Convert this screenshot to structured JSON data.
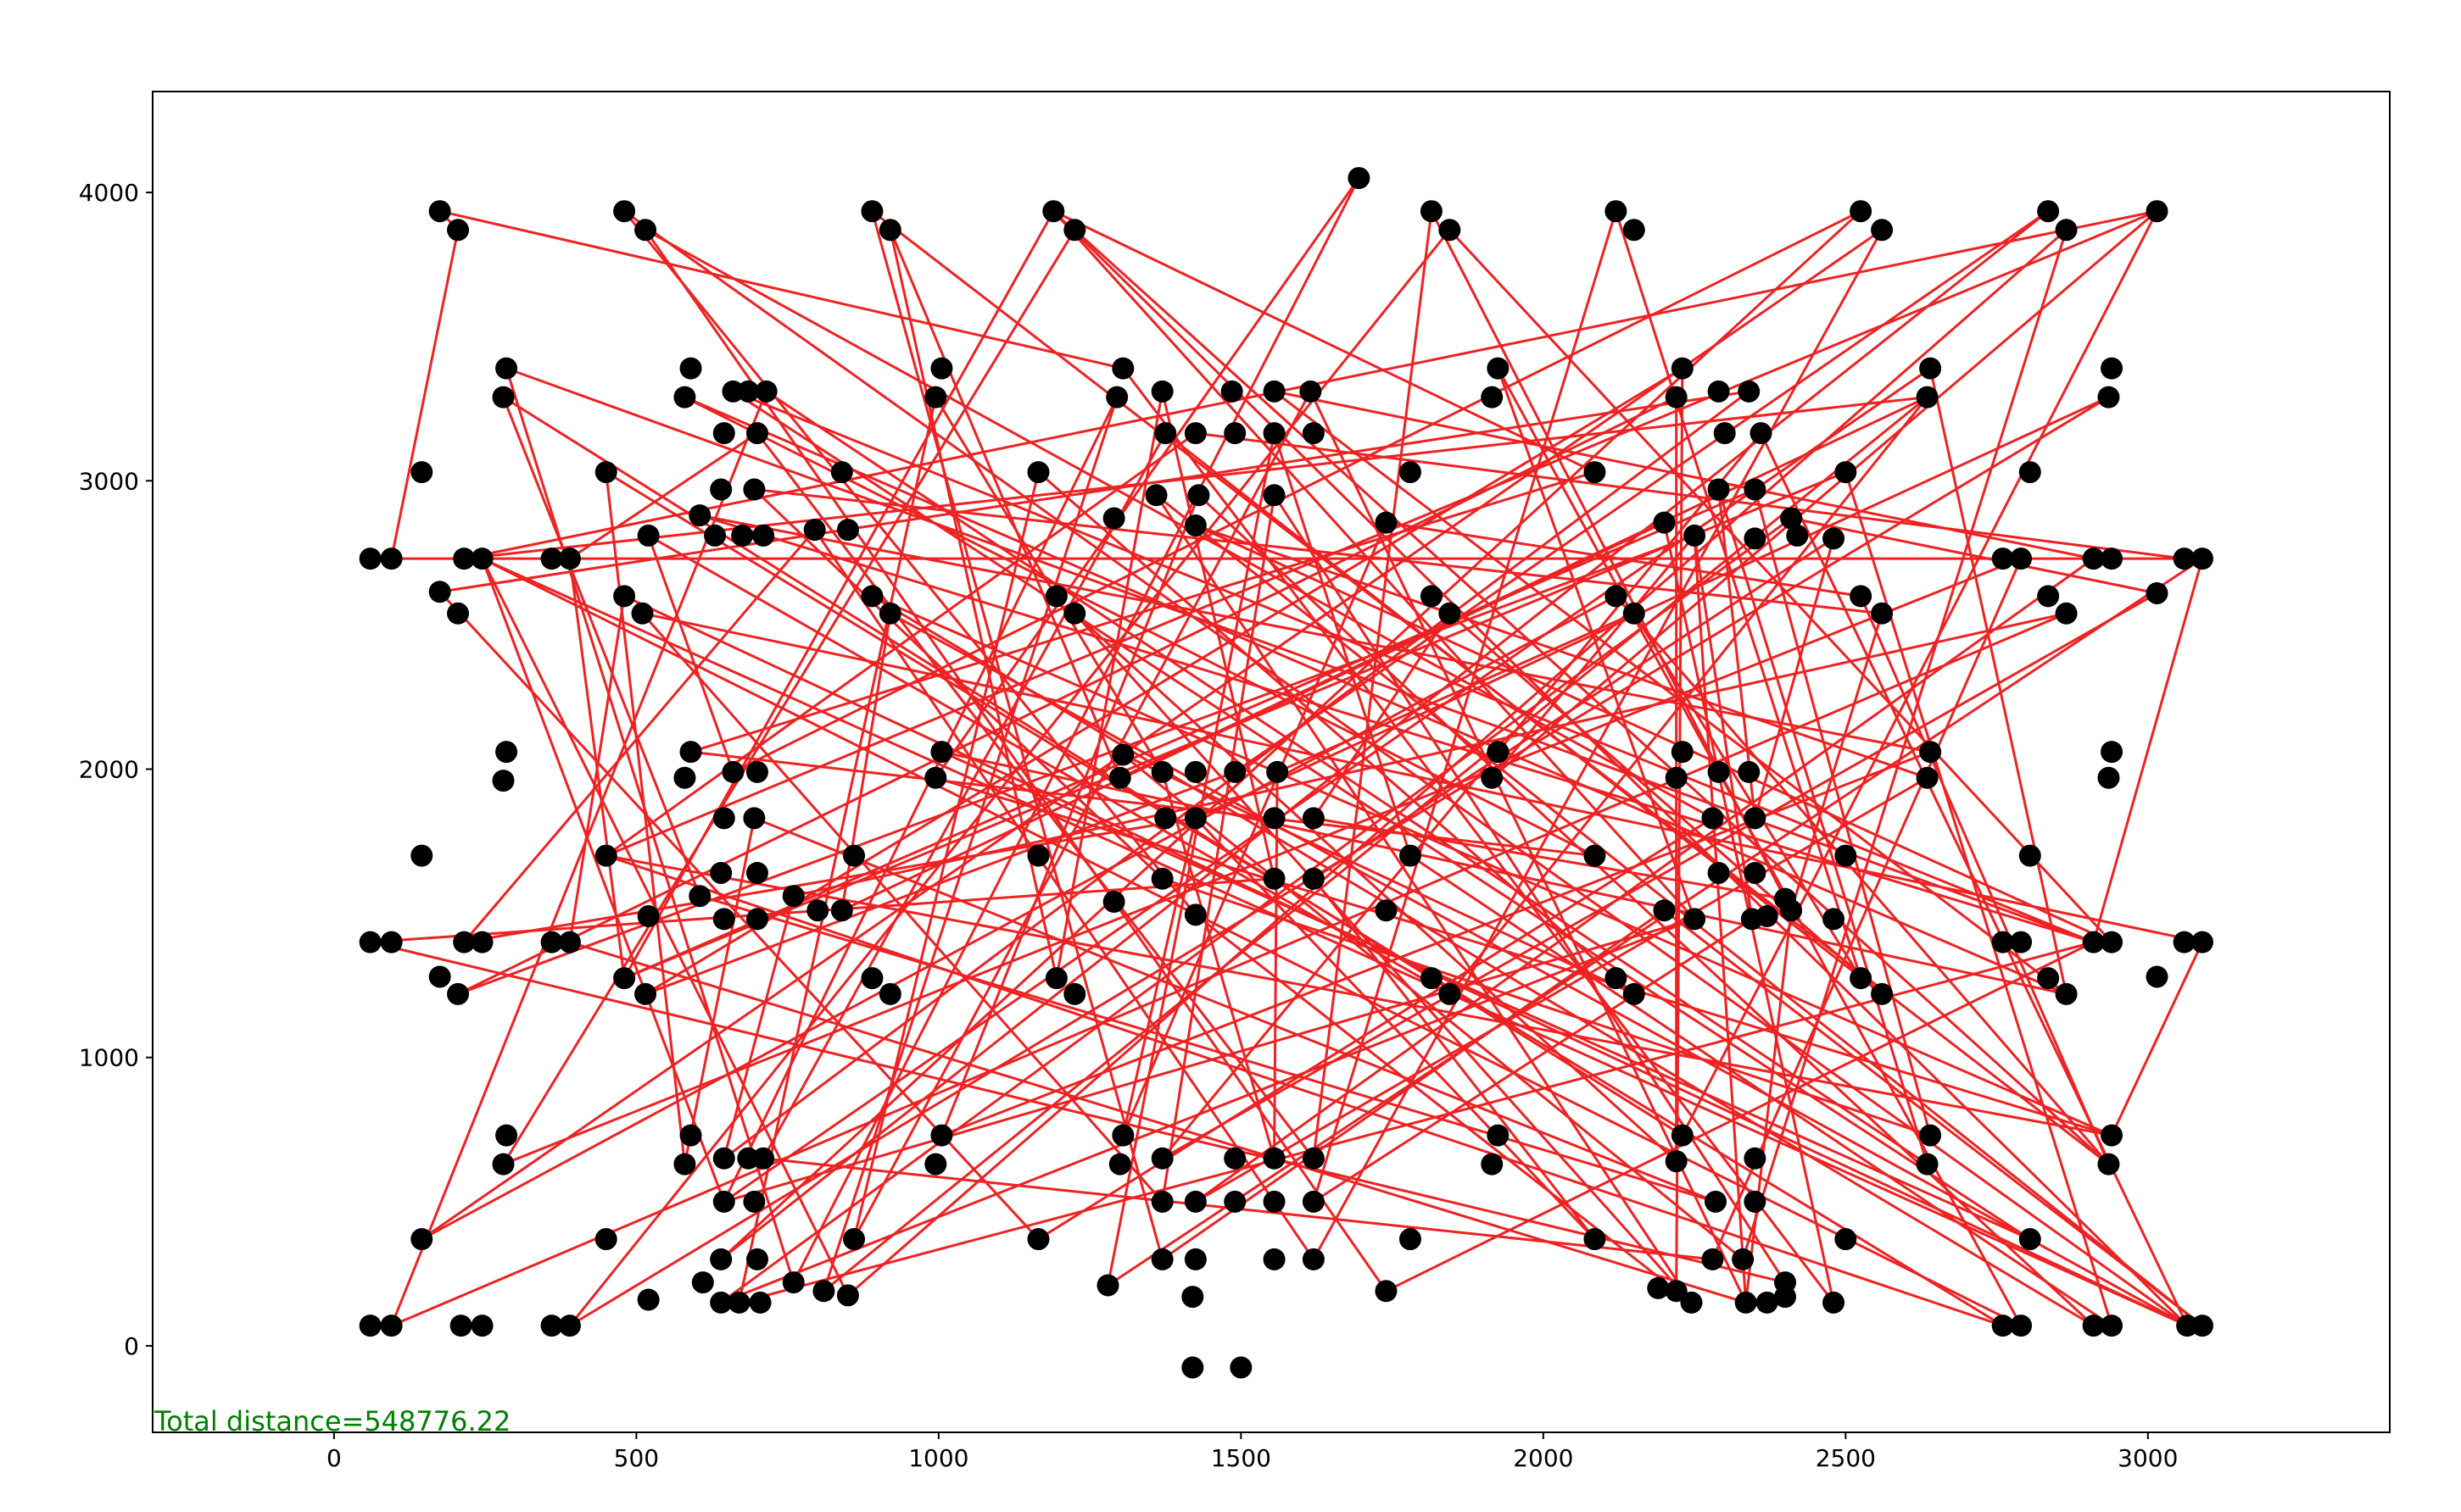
{
  "chart_data": {
    "type": "scatter",
    "title": "",
    "xlabel": "",
    "ylabel": "",
    "xlim": [
      -300,
      3400
    ],
    "ylim": [
      -300,
      4350
    ],
    "xticks": [
      0,
      500,
      1000,
      1500,
      2000,
      2500,
      3000
    ],
    "yticks": [
      0,
      1000,
      2000,
      3000,
      4000
    ],
    "xtick_labels": [
      "0",
      "500",
      "1000",
      "1500",
      "2000",
      "2500",
      "3000"
    ],
    "ytick_labels": [
      "0",
      "1000",
      "2000",
      "3000",
      "4000"
    ],
    "grid": false,
    "annotation": "Total distance=548776.22",
    "colors": {
      "points": "#000000",
      "route": "#ee2222",
      "annotation": "#008000",
      "frame": "#000000"
    },
    "points": [
      [
        175,
        3935
      ],
      [
        205,
        3870
      ],
      [
        480,
        3935
      ],
      [
        515,
        3870
      ],
      [
        890,
        3935
      ],
      [
        920,
        3870
      ],
      [
        1190,
        3935
      ],
      [
        1225,
        3870
      ],
      [
        1815,
        3935
      ],
      [
        1845,
        3870
      ],
      [
        2120,
        3935
      ],
      [
        2150,
        3870
      ],
      [
        2525,
        3935
      ],
      [
        2560,
        3870
      ],
      [
        2835,
        3935
      ],
      [
        2865,
        3870
      ],
      [
        3015,
        3935
      ],
      [
        1695,
        4050
      ],
      [
        285,
        3390
      ],
      [
        280,
        3290
      ],
      [
        590,
        3390
      ],
      [
        580,
        3290
      ],
      [
        660,
        3310
      ],
      [
        685,
        3310
      ],
      [
        715,
        3310
      ],
      [
        645,
        3165
      ],
      [
        700,
        3165
      ],
      [
        1005,
        3390
      ],
      [
        995,
        3290
      ],
      [
        1305,
        3390
      ],
      [
        1295,
        3290
      ],
      [
        1370,
        3310
      ],
      [
        1485,
        3310
      ],
      [
        1555,
        3310
      ],
      [
        1615,
        3310
      ],
      [
        1375,
        3165
      ],
      [
        1425,
        3165
      ],
      [
        1490,
        3165
      ],
      [
        1555,
        3165
      ],
      [
        1620,
        3165
      ],
      [
        1925,
        3390
      ],
      [
        1915,
        3290
      ],
      [
        2230,
        3390
      ],
      [
        2220,
        3290
      ],
      [
        2290,
        3310
      ],
      [
        2340,
        3310
      ],
      [
        2300,
        3165
      ],
      [
        2360,
        3165
      ],
      [
        2640,
        3390
      ],
      [
        2635,
        3290
      ],
      [
        2940,
        3390
      ],
      [
        2935,
        3290
      ],
      [
        145,
        3030
      ],
      [
        450,
        3030
      ],
      [
        840,
        3030
      ],
      [
        1165,
        3030
      ],
      [
        1780,
        3030
      ],
      [
        2085,
        3030
      ],
      [
        2500,
        3030
      ],
      [
        2805,
        3030
      ],
      [
        640,
        2970
      ],
      [
        695,
        2970
      ],
      [
        1360,
        2950
      ],
      [
        1430,
        2950
      ],
      [
        1555,
        2950
      ],
      [
        2290,
        2970
      ],
      [
        2350,
        2970
      ],
      [
        605,
        2880
      ],
      [
        630,
        2810
      ],
      [
        675,
        2810
      ],
      [
        710,
        2810
      ],
      [
        520,
        2810
      ],
      [
        795,
        2830
      ],
      [
        850,
        2830
      ],
      [
        1290,
        2870
      ],
      [
        1425,
        2845
      ],
      [
        1740,
        2855
      ],
      [
        2200,
        2855
      ],
      [
        2250,
        2810
      ],
      [
        2350,
        2800
      ],
      [
        2410,
        2870
      ],
      [
        2420,
        2810
      ],
      [
        2480,
        2800
      ],
      [
        60,
        2730
      ],
      [
        95,
        2730
      ],
      [
        215,
        2730
      ],
      [
        245,
        2730
      ],
      [
        360,
        2730
      ],
      [
        390,
        2730
      ],
      [
        2760,
        2730
      ],
      [
        2790,
        2730
      ],
      [
        2910,
        2730
      ],
      [
        2940,
        2730
      ],
      [
        3060,
        2730
      ],
      [
        3090,
        2730
      ],
      [
        175,
        2615
      ],
      [
        205,
        2540
      ],
      [
        480,
        2600
      ],
      [
        510,
        2540
      ],
      [
        890,
        2600
      ],
      [
        920,
        2540
      ],
      [
        1195,
        2600
      ],
      [
        1225,
        2540
      ],
      [
        1815,
        2600
      ],
      [
        1845,
        2540
      ],
      [
        2120,
        2600
      ],
      [
        2150,
        2540
      ],
      [
        2525,
        2600
      ],
      [
        2560,
        2540
      ],
      [
        2835,
        2600
      ],
      [
        2865,
        2540
      ],
      [
        3015,
        2610
      ],
      [
        285,
        2060
      ],
      [
        280,
        1960
      ],
      [
        590,
        2060
      ],
      [
        580,
        1970
      ],
      [
        660,
        1990
      ],
      [
        700,
        1990
      ],
      [
        1005,
        2060
      ],
      [
        995,
        1970
      ],
      [
        1305,
        2050
      ],
      [
        1300,
        1970
      ],
      [
        1370,
        1990
      ],
      [
        1425,
        1990
      ],
      [
        1490,
        1990
      ],
      [
        1560,
        1990
      ],
      [
        1925,
        2060
      ],
      [
        1915,
        1970
      ],
      [
        2230,
        2060
      ],
      [
        2220,
        1970
      ],
      [
        2290,
        1990
      ],
      [
        2340,
        1990
      ],
      [
        2640,
        2060
      ],
      [
        2635,
        1970
      ],
      [
        2940,
        2060
      ],
      [
        2935,
        1970
      ],
      [
        645,
        1830
      ],
      [
        695,
        1830
      ],
      [
        1375,
        1830
      ],
      [
        1425,
        1830
      ],
      [
        1555,
        1830
      ],
      [
        1620,
        1830
      ],
      [
        2280,
        1830
      ],
      [
        2350,
        1830
      ],
      [
        145,
        1700
      ],
      [
        450,
        1700
      ],
      [
        860,
        1700
      ],
      [
        1165,
        1700
      ],
      [
        1780,
        1700
      ],
      [
        2085,
        1700
      ],
      [
        2500,
        1700
      ],
      [
        2805,
        1700
      ],
      [
        640,
        1640
      ],
      [
        700,
        1640
      ],
      [
        1370,
        1620
      ],
      [
        1555,
        1620
      ],
      [
        1620,
        1620
      ],
      [
        2290,
        1640
      ],
      [
        2350,
        1640
      ],
      [
        520,
        1490
      ],
      [
        605,
        1560
      ],
      [
        645,
        1480
      ],
      [
        700,
        1480
      ],
      [
        760,
        1560
      ],
      [
        800,
        1510
      ],
      [
        840,
        1510
      ],
      [
        1290,
        1540
      ],
      [
        1425,
        1495
      ],
      [
        1740,
        1510
      ],
      [
        2200,
        1510
      ],
      [
        2250,
        1480
      ],
      [
        2345,
        1480
      ],
      [
        2370,
        1490
      ],
      [
        2400,
        1550
      ],
      [
        2410,
        1510
      ],
      [
        2480,
        1480
      ],
      [
        60,
        1400
      ],
      [
        95,
        1400
      ],
      [
        215,
        1400
      ],
      [
        245,
        1400
      ],
      [
        360,
        1400
      ],
      [
        390,
        1400
      ],
      [
        2760,
        1400
      ],
      [
        2790,
        1400
      ],
      [
        2910,
        1400
      ],
      [
        2940,
        1400
      ],
      [
        3060,
        1400
      ],
      [
        3090,
        1400
      ],
      [
        175,
        1280
      ],
      [
        205,
        1220
      ],
      [
        480,
        1275
      ],
      [
        515,
        1220
      ],
      [
        890,
        1275
      ],
      [
        920,
        1220
      ],
      [
        1195,
        1275
      ],
      [
        1225,
        1220
      ],
      [
        1815,
        1275
      ],
      [
        1845,
        1220
      ],
      [
        2120,
        1275
      ],
      [
        2150,
        1220
      ],
      [
        2525,
        1275
      ],
      [
        2560,
        1220
      ],
      [
        2835,
        1275
      ],
      [
        2865,
        1220
      ],
      [
        3015,
        1280
      ],
      [
        285,
        730
      ],
      [
        280,
        630
      ],
      [
        590,
        730
      ],
      [
        580,
        630
      ],
      [
        645,
        650
      ],
      [
        685,
        650
      ],
      [
        710,
        650
      ],
      [
        1005,
        730
      ],
      [
        995,
        630
      ],
      [
        1305,
        730
      ],
      [
        1300,
        630
      ],
      [
        1370,
        650
      ],
      [
        1490,
        650
      ],
      [
        1555,
        650
      ],
      [
        1620,
        650
      ],
      [
        1925,
        730
      ],
      [
        1915,
        630
      ],
      [
        2230,
        730
      ],
      [
        2220,
        640
      ],
      [
        2350,
        650
      ],
      [
        2640,
        730
      ],
      [
        2635,
        630
      ],
      [
        2940,
        730
      ],
      [
        2935,
        630
      ],
      [
        645,
        500
      ],
      [
        695,
        500
      ],
      [
        1370,
        500
      ],
      [
        1425,
        500
      ],
      [
        1490,
        500
      ],
      [
        1555,
        500
      ],
      [
        1620,
        500
      ],
      [
        2285,
        500
      ],
      [
        2350,
        500
      ],
      [
        145,
        370
      ],
      [
        450,
        370
      ],
      [
        860,
        370
      ],
      [
        1165,
        370
      ],
      [
        1780,
        370
      ],
      [
        2085,
        370
      ],
      [
        2500,
        370
      ],
      [
        2805,
        370
      ],
      [
        640,
        300
      ],
      [
        700,
        300
      ],
      [
        1370,
        300
      ],
      [
        1425,
        300
      ],
      [
        1555,
        300
      ],
      [
        1620,
        300
      ],
      [
        2280,
        300
      ],
      [
        2330,
        300
      ],
      [
        520,
        160
      ],
      [
        610,
        220
      ],
      [
        640,
        150
      ],
      [
        670,
        150
      ],
      [
        705,
        150
      ],
      [
        760,
        220
      ],
      [
        810,
        190
      ],
      [
        850,
        175
      ],
      [
        1280,
        210
      ],
      [
        1420,
        170
      ],
      [
        1740,
        190
      ],
      [
        2190,
        200
      ],
      [
        2220,
        190
      ],
      [
        2245,
        150
      ],
      [
        2335,
        150
      ],
      [
        2370,
        150
      ],
      [
        2400,
        220
      ],
      [
        2400,
        170
      ],
      [
        2480,
        150
      ],
      [
        60,
        70
      ],
      [
        95,
        70
      ],
      [
        210,
        70
      ],
      [
        245,
        70
      ],
      [
        360,
        70
      ],
      [
        390,
        70
      ],
      [
        2760,
        70
      ],
      [
        2790,
        70
      ],
      [
        2910,
        70
      ],
      [
        2940,
        70
      ],
      [
        3065,
        70
      ],
      [
        3090,
        70
      ],
      [
        1420,
        -75
      ],
      [
        1500,
        -75
      ]
    ],
    "route": [
      0,
      1,
      84,
      93,
      36,
      145,
      279,
      53,
      208,
      137,
      236,
      160,
      19,
      222,
      16,
      85,
      49,
      121,
      5,
      194,
      31,
      155,
      176,
      270,
      64,
      231,
      98,
      187,
      227,
      119,
      17,
      259,
      18,
      184,
      94,
      262,
      38,
      148,
      282,
      58,
      190,
      88,
      26,
      219,
      8,
      173,
      141,
      104,
      201,
      35,
      211,
      252,
      90,
      206,
      7,
      228,
      105,
      238,
      13,
      251,
      72,
      178,
      139,
      243,
      156,
      82,
      143,
      65,
      226,
      24,
      274,
      110,
      163,
      209,
      45,
      95,
      241,
      142,
      3,
      264,
      184,
      257,
      28,
      122,
      218,
      125,
      106,
      200,
      10,
      235,
      171,
      78,
      268,
      181,
      97,
      283,
      2,
      167,
      266,
      42,
      191,
      124,
      14,
      246,
      12,
      116,
      71,
      197,
      49,
      260,
      30,
      229,
      170,
      256,
      80,
      111,
      216,
      47,
      283,
      6,
      190,
      66,
      225,
      154,
      61,
      108,
      174,
      268,
      34,
      240,
      55,
      199,
      120,
      253,
      15,
      261,
      86,
      280,
      40,
      170,
      6,
      57,
      114,
      149,
      21,
      203,
      33,
      91,
      232,
      133,
      75,
      185,
      9,
      278,
      51,
      139,
      214,
      76,
      107,
      228,
      4,
      248,
      169,
      284,
      62,
      267,
      102,
      223,
      43,
      189,
      78,
      127,
      16,
      145,
      227,
      99,
      281,
      63,
      212,
      132,
      67,
      184,
      22,
      245,
      118,
      203,
      48,
      229,
      86,
      283,
      100,
      165,
      77,
      272,
      29,
      0
    ]
  }
}
